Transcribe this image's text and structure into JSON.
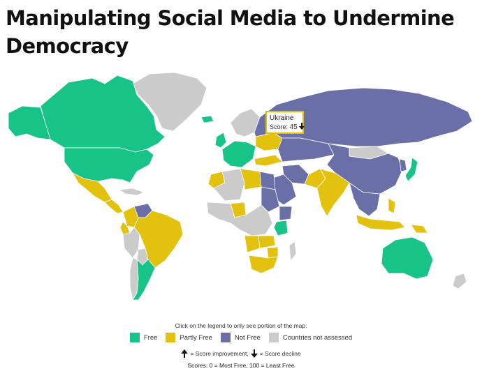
{
  "title": "Manipulating Social Media to Undermine Democracy",
  "tooltip": {
    "country": "Ukraine",
    "score_label": "Score:",
    "score_value": "45",
    "trend": "decline"
  },
  "legend": {
    "note": "Click on the legend to only see portion of the map:",
    "items": [
      {
        "label": "Free",
        "color": "#17c386"
      },
      {
        "label": "Partly Free",
        "color": "#e2c20e"
      },
      {
        "label": "Not Free",
        "color": "#6b6fa8"
      },
      {
        "label": "Countries not assessed",
        "color": "#cbcbcb"
      }
    ]
  },
  "arrows": {
    "improvement_label": "= Score improvement,",
    "decline_label": "= Score decline"
  },
  "scale_note": "Scores: 0 = Most Free, 100 = Least Free",
  "colors": {
    "free": "#17c386",
    "partly_free": "#e2c20e",
    "not_free": "#6b6fa8",
    "not_assessed": "#cbcbcb",
    "ocean": "#ffffff",
    "border": "#ffffff"
  },
  "regions": [
    {
      "name": "Greenland",
      "status": "not_assessed"
    },
    {
      "name": "Canada",
      "status": "free"
    },
    {
      "name": "United States",
      "status": "free"
    },
    {
      "name": "Alaska",
      "status": "free"
    },
    {
      "name": "Mexico",
      "status": "partly_free"
    },
    {
      "name": "Central America",
      "status": "partly_free"
    },
    {
      "name": "Caribbean",
      "status": "not_assessed"
    },
    {
      "name": "Venezuela",
      "status": "not_free"
    },
    {
      "name": "Colombia",
      "status": "partly_free"
    },
    {
      "name": "Ecuador",
      "status": "partly_free"
    },
    {
      "name": "Peru",
      "status": "not_assessed"
    },
    {
      "name": "Brazil",
      "status": "partly_free"
    },
    {
      "name": "Bolivia",
      "status": "not_assessed"
    },
    {
      "name": "Argentina",
      "status": "free"
    },
    {
      "name": "Chile",
      "status": "not_assessed"
    },
    {
      "name": "Iceland",
      "status": "free"
    },
    {
      "name": "United Kingdom",
      "status": "free"
    },
    {
      "name": "Western Europe",
      "status": "free"
    },
    {
      "name": "Scandinavia",
      "status": "not_assessed"
    },
    {
      "name": "Ukraine",
      "status": "partly_free"
    },
    {
      "name": "Turkey",
      "status": "partly_free"
    },
    {
      "name": "Russia",
      "status": "not_free"
    },
    {
      "name": "Kazakhstan",
      "status": "not_free"
    },
    {
      "name": "Mongolia",
      "status": "not_assessed"
    },
    {
      "name": "China",
      "status": "not_free"
    },
    {
      "name": "India",
      "status": "partly_free"
    },
    {
      "name": "Pakistan",
      "status": "partly_free"
    },
    {
      "name": "Iran",
      "status": "not_free"
    },
    {
      "name": "Saudi Arabia",
      "status": "not_free"
    },
    {
      "name": "Egypt",
      "status": "not_free"
    },
    {
      "name": "Morocco",
      "status": "partly_free"
    },
    {
      "name": "Algeria",
      "status": "not_assessed"
    },
    {
      "name": "Libya",
      "status": "partly_free"
    },
    {
      "name": "Sudan",
      "status": "not_free"
    },
    {
      "name": "Ethiopia",
      "status": "not_free"
    },
    {
      "name": "Kenya",
      "status": "free"
    },
    {
      "name": "Nigeria",
      "status": "partly_free"
    },
    {
      "name": "Central Africa",
      "status": "not_assessed"
    },
    {
      "name": "Angola",
      "status": "partly_free"
    },
    {
      "name": "Zambia",
      "status": "partly_free"
    },
    {
      "name": "Zimbabwe",
      "status": "partly_free"
    },
    {
      "name": "South Africa",
      "status": "partly_free"
    },
    {
      "name": "Madagascar",
      "status": "not_assessed"
    },
    {
      "name": "Southeast Asia",
      "status": "not_free"
    },
    {
      "name": "Indonesia",
      "status": "partly_free"
    },
    {
      "name": "Philippines",
      "status": "partly_free"
    },
    {
      "name": "Japan",
      "status": "free"
    },
    {
      "name": "Korea",
      "status": "not_free"
    },
    {
      "name": "Australia",
      "status": "free"
    },
    {
      "name": "New Zealand",
      "status": "not_assessed"
    },
    {
      "name": "Papua New Guinea",
      "status": "partly_free"
    }
  ]
}
